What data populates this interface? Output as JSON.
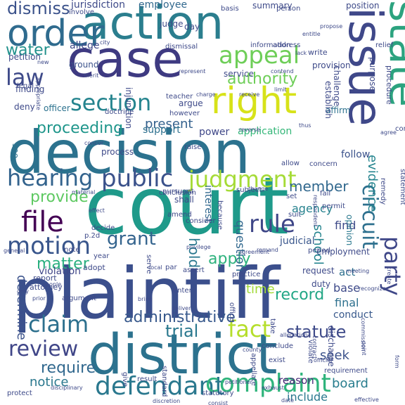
{
  "words": [
    {
      "text": "court",
      "color": "#1f9a8a"
    },
    {
      "text": "plaintiff",
      "color": "#3b4f8c"
    },
    {
      "text": "decision",
      "color": "#2c728e"
    },
    {
      "text": "district",
      "color": "#2c728e"
    },
    {
      "text": "case",
      "color": "#3e3a81"
    },
    {
      "text": "action",
      "color": "#2b7e8e"
    },
    {
      "text": "state",
      "color": "#2ca37f"
    },
    {
      "text": "issue",
      "color": "#3f4889"
    },
    {
      "text": "order",
      "color": "#2f6b8e"
    },
    {
      "text": "right",
      "color": "#d7e219"
    },
    {
      "text": "defendant",
      "color": "#2a788e"
    },
    {
      "text": "complaint",
      "color": "#2fb47c"
    },
    {
      "text": "appeal",
      "color": "#6ece58"
    },
    {
      "text": "section",
      "color": "#25848e"
    },
    {
      "text": "judgment",
      "color": "#a5db36"
    },
    {
      "text": "hearing",
      "color": "#33638d"
    },
    {
      "text": "public",
      "color": "#3b528b"
    },
    {
      "text": "file",
      "color": "#440154"
    },
    {
      "text": "circuit",
      "color": "#2d708e"
    },
    {
      "text": "party",
      "color": "#3f4788"
    },
    {
      "text": "fact",
      "color": "#b5de2b"
    },
    {
      "text": "review",
      "color": "#404688"
    },
    {
      "text": "claim",
      "color": "#2d708e"
    },
    {
      "text": "motion",
      "color": "#39568c"
    },
    {
      "text": "rule",
      "color": "#3f4788"
    },
    {
      "text": "law",
      "color": "#3e4a89"
    },
    {
      "text": "authority",
      "color": "#6ece58"
    },
    {
      "text": "proceeding",
      "color": "#1f968b"
    },
    {
      "text": "dismiss",
      "color": "#3b528b"
    },
    {
      "text": "water",
      "color": "#21918c"
    },
    {
      "text": "provide",
      "color": "#5ec962"
    },
    {
      "text": "grant",
      "color": "#33638d"
    },
    {
      "text": "trial",
      "color": "#2a788e"
    },
    {
      "text": "apply",
      "color": "#2db27d"
    },
    {
      "text": "hold",
      "color": "#2a788e"
    },
    {
      "text": "administrative",
      "color": "#38598c"
    },
    {
      "text": "matter",
      "color": "#29af7f"
    },
    {
      "text": "record",
      "color": "#21a685"
    },
    {
      "text": "statute",
      "color": "#3e4a89"
    },
    {
      "text": "school",
      "color": "#25848e"
    },
    {
      "text": "question",
      "color": "#31688e"
    },
    {
      "text": "member",
      "color": "#31688e"
    },
    {
      "text": "evidence",
      "color": "#25848e"
    },
    {
      "text": "board",
      "color": "#287d8e"
    },
    {
      "text": "require",
      "color": "#31688e"
    },
    {
      "text": "notice",
      "color": "#2a788e"
    },
    {
      "text": "present",
      "color": "#34618d"
    },
    {
      "text": "time",
      "color": "#a2da37"
    },
    {
      "text": "employee",
      "color": "#31688e"
    },
    {
      "text": "jurisdiction",
      "color": "#3e4a89"
    },
    {
      "text": "determine",
      "color": "#3b528b"
    },
    {
      "text": "seek",
      "color": "#3b528b"
    },
    {
      "text": "include",
      "color": "#2a788e"
    },
    {
      "text": "reason",
      "color": "#482878"
    },
    {
      "text": "find",
      "color": "#3e4a89"
    },
    {
      "text": "final",
      "color": "#2d708e"
    },
    {
      "text": "base",
      "color": "#3e4a89"
    },
    {
      "text": "act",
      "color": "#2d708e"
    },
    {
      "text": "support",
      "color": "#2d708e"
    },
    {
      "text": "application",
      "color": "#35b779"
    },
    {
      "text": "conduct",
      "color": "#38598c"
    },
    {
      "text": "judicial",
      "color": "#39568c"
    },
    {
      "text": "interest",
      "color": "#31688e"
    },
    {
      "text": "agency",
      "color": "#26828e"
    },
    {
      "text": "follow",
      "color": "#3b528b"
    },
    {
      "text": "process",
      "color": "#3e4a89"
    },
    {
      "text": "power",
      "color": "#3f4788"
    },
    {
      "text": "opinion",
      "color": "#2a788e"
    },
    {
      "text": "see",
      "color": "#2c728e"
    },
    {
      "text": "violation",
      "color": "#404688"
    },
    {
      "text": "request",
      "color": "#3e4a89"
    },
    {
      "text": "duty",
      "color": "#3e4a89"
    },
    {
      "text": "argue",
      "color": "#3e4a89"
    },
    {
      "text": "officer",
      "color": "#2c728e"
    },
    {
      "text": "ground",
      "color": "#3b528b"
    },
    {
      "text": "affirm",
      "color": "#2c728e"
    },
    {
      "text": "allege",
      "color": "#3e4a89"
    },
    {
      "text": "summary",
      "color": "#3e4a89"
    },
    {
      "text": "position",
      "color": "#3e4a89"
    },
    {
      "text": "procedure",
      "color": "#3e4a89"
    },
    {
      "text": "basis",
      "color": "#3e4a89"
    },
    {
      "text": "person",
      "color": "#3e4a89"
    },
    {
      "text": "involve",
      "color": "#3e4a89"
    },
    {
      "text": "judge",
      "color": "#3e4a89"
    },
    {
      "text": "day",
      "color": "#3e4a89"
    },
    {
      "text": "dismissal",
      "color": "#3e4a89"
    },
    {
      "text": "information",
      "color": "#3e4a89"
    },
    {
      "text": "address",
      "color": "#3e4a89"
    },
    {
      "text": "petition",
      "color": "#3e4a89"
    },
    {
      "text": "legal",
      "color": "#3e4a89"
    },
    {
      "text": "finding",
      "color": "#3e4a89"
    },
    {
      "text": "deny",
      "color": "#3e4a89"
    },
    {
      "text": "service",
      "color": "#3e4a89"
    },
    {
      "text": "teacher",
      "color": "#3e4a89"
    },
    {
      "text": "however",
      "color": "#3e4a89"
    },
    {
      "text": "doctrine",
      "color": "#3e4a89"
    },
    {
      "text": "injunction",
      "color": "#3e4a89"
    },
    {
      "text": "establish",
      "color": "#3e4a89"
    },
    {
      "text": "challenge",
      "color": "#3e4a89"
    },
    {
      "text": "provision",
      "color": "#3e4a89"
    },
    {
      "text": "purpose",
      "color": "#3e4a89"
    },
    {
      "text": "relief",
      "color": "#3e4a89"
    },
    {
      "text": "write",
      "color": "#3e4a89"
    },
    {
      "text": "concern",
      "color": "#3e4a89"
    },
    {
      "text": "consider",
      "color": "#3e4a89"
    },
    {
      "text": "amend",
      "color": "#3e4a89"
    },
    {
      "text": "shall",
      "color": "#3e4a89"
    },
    {
      "text": "decide",
      "color": "#3e4a89"
    },
    {
      "text": "p.2d",
      "color": "#3e4a89"
    },
    {
      "text": "conclusion",
      "color": "#3e4a89"
    },
    {
      "text": "pursuant",
      "color": "#3e4a89"
    },
    {
      "text": "raise",
      "color": "#3e4a89"
    },
    {
      "text": "allow",
      "color": "#3e4a89"
    },
    {
      "text": "fail",
      "color": "#3e4a89"
    },
    {
      "text": "permit",
      "color": "#3e4a89"
    },
    {
      "text": "period",
      "color": "#3e4a89"
    },
    {
      "text": "because",
      "color": "#3e4a89"
    },
    {
      "text": "subject",
      "color": "#3e4a89"
    },
    {
      "text": "suit",
      "color": "#3e4a89"
    },
    {
      "text": "set",
      "color": "#3e4a89"
    },
    {
      "text": "statement",
      "color": "#3e4a89"
    },
    {
      "text": "constitutional",
      "color": "#3e4a89"
    },
    {
      "text": "remedy",
      "color": "#3e4a89"
    },
    {
      "text": "employment",
      "color": "#3e4a89"
    },
    {
      "text": "assert",
      "color": "#3e4a89"
    },
    {
      "text": "practice",
      "color": "#3e4a89"
    },
    {
      "text": "enter",
      "color": "#3e4a89"
    },
    {
      "text": "par",
      "color": "#3e4a89"
    },
    {
      "text": "serve",
      "color": "#3e4a89"
    },
    {
      "text": "year",
      "color": "#3e4a89"
    },
    {
      "text": "adopt",
      "color": "#3e4a89"
    },
    {
      "text": "report",
      "color": "#3e4a89"
    },
    {
      "text": "attorney",
      "color": "#3e4a89"
    },
    {
      "text": "argument",
      "color": "#3e4a89"
    },
    {
      "text": "give",
      "color": "#3e4a89"
    },
    {
      "text": "result",
      "color": "#3e4a89"
    },
    {
      "text": "statutory",
      "color": "#3e4a89"
    },
    {
      "text": "standard",
      "color": "#3e4a89"
    },
    {
      "text": "appellate",
      "color": "#3e4a89"
    },
    {
      "text": "conclude",
      "color": "#3e4a89"
    },
    {
      "text": "exist",
      "color": "#3e4a89"
    },
    {
      "text": "violate",
      "color": "#3e4a89"
    },
    {
      "text": "requirement",
      "color": "#3e4a89"
    },
    {
      "text": "discharge",
      "color": "#3e4a89"
    },
    {
      "text": "office",
      "color": "#3e4a89"
    },
    {
      "text": "take",
      "color": "#3e4a89"
    },
    {
      "text": "protect",
      "color": "#3e4a89"
    },
    {
      "text": "note",
      "color": "#3e4a89"
    },
    {
      "text": "prior",
      "color": "#3e4a89"
    },
    {
      "text": "people",
      "color": "#3e4a89"
    },
    {
      "text": "only",
      "color": "#3e4a89"
    },
    {
      "text": "general",
      "color": "#3e4a89"
    },
    {
      "text": "material",
      "color": "#3e4a89"
    },
    {
      "text": "concur",
      "color": "#3e4a89"
    },
    {
      "text": "bring",
      "color": "#3e4a89"
    },
    {
      "text": "local",
      "color": "#3e4a89"
    },
    {
      "text": "privilege",
      "color": "#3e4a89"
    },
    {
      "text": "agreement",
      "color": "#3e4a89"
    },
    {
      "text": "remand",
      "color": "#3e4a89"
    },
    {
      "text": "meeting",
      "color": "#3e4a89"
    },
    {
      "text": "recognize",
      "color": "#3e4a89"
    },
    {
      "text": "create",
      "color": "#3e4a89"
    },
    {
      "text": "agree",
      "color": "#3e4a89"
    },
    {
      "text": "thus",
      "color": "#3e4a89"
    },
    {
      "text": "reverse",
      "color": "#3e4a89"
    },
    {
      "text": "respondent",
      "color": "#3e4a89"
    },
    {
      "text": "change",
      "color": "#3e4a89"
    },
    {
      "text": "charge",
      "color": "#3e4a89"
    },
    {
      "text": "receive",
      "color": "#3e4a89"
    },
    {
      "text": "represent",
      "color": "#3e4a89"
    },
    {
      "text": "contend",
      "color": "#3e4a89"
    },
    {
      "text": "limit",
      "color": "#3e4a89"
    },
    {
      "text": "effect",
      "color": "#3e4a89"
    },
    {
      "text": "entitle",
      "color": "#3e4a89"
    },
    {
      "text": "lack",
      "color": "#3e4a89"
    },
    {
      "text": "propose",
      "color": "#3e4a89"
    },
    {
      "text": "merit",
      "color": "#3e4a89"
    },
    {
      "text": "appropriate",
      "color": "#3e4a89"
    },
    {
      "text": "new",
      "color": "#3e4a89"
    },
    {
      "text": "city",
      "color": "#3e4a89"
    },
    {
      "text": "point",
      "color": "#3e4a89"
    },
    {
      "text": "date",
      "color": "#3e4a89"
    },
    {
      "text": "discretion",
      "color": "#3e4a89"
    },
    {
      "text": "deliver",
      "color": "#3e4a89"
    },
    {
      "text": "petitioner",
      "color": "#3e4a89"
    },
    {
      "text": "form",
      "color": "#3e4a89"
    },
    {
      "text": "effective",
      "color": "#3e4a89"
    },
    {
      "text": "allegation",
      "color": "#3e4a89"
    },
    {
      "text": "contract",
      "color": "#3e4a89"
    },
    {
      "text": "official",
      "color": "#3e4a89"
    },
    {
      "text": "exhaust",
      "color": "#3e4a89"
    },
    {
      "text": "disciplinary",
      "color": "#3e4a89"
    },
    {
      "text": "commission",
      "color": "#3e4a89"
    },
    {
      "text": "county",
      "color": "#3e4a89"
    },
    {
      "text": "consist",
      "color": "#3e4a89"
    },
    {
      "text": "equal",
      "color": "#3e4a89"
    },
    {
      "text": "hear",
      "color": "#3e4a89"
    }
  ]
}
